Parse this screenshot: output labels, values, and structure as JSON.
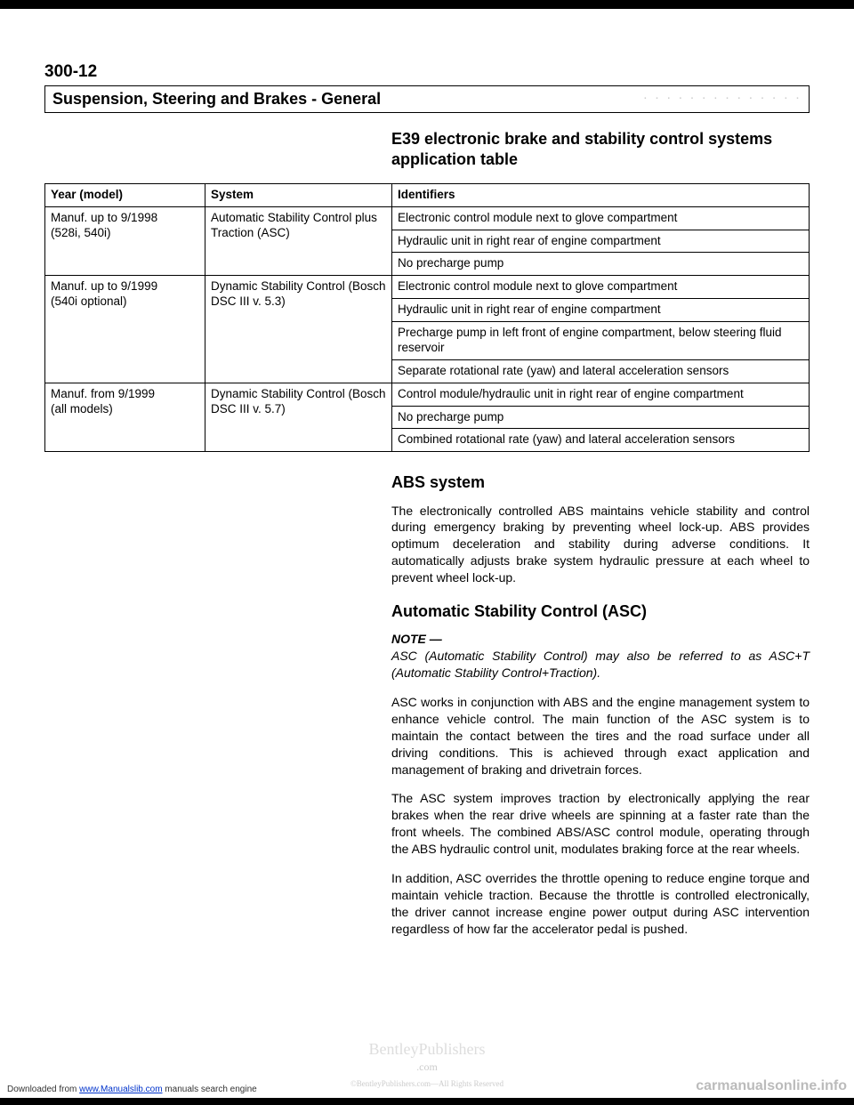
{
  "page_num": "300-12",
  "section_title": "Suspension, Steering and Brakes - General",
  "sub_heading": "E39 electronic brake and stability control systems application table",
  "table": {
    "headers": [
      "Year (model)",
      "System",
      "Identifiers"
    ],
    "rows": [
      {
        "year": "Manuf. up to 9/1998\n(528i, 540i)",
        "system": "Automatic Stability Control plus Traction (ASC)",
        "ids": [
          "Electronic control module next to glove compartment",
          "Hydraulic unit in right rear of engine compartment",
          "No precharge pump"
        ]
      },
      {
        "year": "Manuf. up to 9/1999\n(540i optional)",
        "system": "Dynamic Stability Control (Bosch DSC III v. 5.3)",
        "ids": [
          "Electronic control module next to glove compartment",
          "Hydraulic unit in right rear of engine compartment",
          "Precharge pump in left front of engine compartment, below steering fluid reservoir",
          "Separate rotational rate (yaw) and lateral acceleration sensors"
        ]
      },
      {
        "year": "Manuf. from 9/1999\n(all models)",
        "system": "Dynamic Stability Control (Bosch DSC III v. 5.7)",
        "ids": [
          "Control module/hydraulic unit in right rear of engine compartment",
          "No precharge pump",
          "Combined rotational rate (yaw) and lateral acceleration sensors"
        ]
      }
    ]
  },
  "abs": {
    "title": "ABS system",
    "p1": "The electronically controlled ABS maintains vehicle stability and control during emergency braking by preventing wheel lock-up. ABS provides optimum deceleration and stability during adverse conditions. It automatically adjusts brake system hydraulic pressure at each wheel to prevent wheel lock-up."
  },
  "asc": {
    "title": "Automatic Stability Control (ASC)",
    "note_label": "NOTE —",
    "note_body": "ASC (Automatic Stability Control) may also be referred to as ASC+T (Automatic Stability Control+Traction).",
    "p1": "ASC works in conjunction with ABS and the engine management system to enhance vehicle control. The main function of the ASC system is to maintain the contact between the tires and the road surface under all driving conditions. This is achieved through exact application and management of braking and drivetrain forces.",
    "p2": "The ASC system improves traction by electronically applying the rear brakes when the rear drive wheels are spinning at a faster rate than the front wheels. The combined ABS/ASC control module, operating through the ABS hydraulic control unit, modulates braking force at the rear wheels.",
    "p3": "In addition, ASC overrides the throttle opening to reduce engine torque and maintain vehicle traction. Because the throttle is controlled electronically, the driver cannot increase engine power output during ASC intervention regardless of how far the accelerator pedal is pushed."
  },
  "watermark": {
    "line1": "BentleyPublishers",
    "line2": ".com",
    "line3": "©BentleyPublishers.com—All Rights Reserved"
  },
  "footer_left_pre": "Downloaded from ",
  "footer_left_link": "www.Manualslib.com",
  "footer_left_post": " manuals search engine",
  "footer_right": "carmanualsonline.info"
}
